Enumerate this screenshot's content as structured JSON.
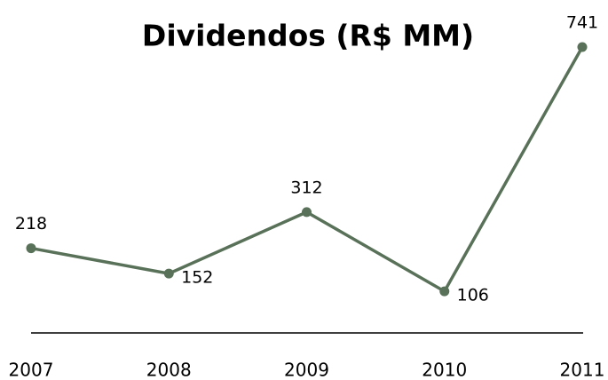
{
  "chart_data": {
    "type": "line",
    "title": "Dividendos (R$ MM)",
    "categories": [
      "2007",
      "2008",
      "2009",
      "2010",
      "2011"
    ],
    "series": [
      {
        "name": "Dividendos",
        "color": "#587158",
        "values": [
          218,
          152,
          312,
          106,
          741
        ]
      }
    ]
  }
}
